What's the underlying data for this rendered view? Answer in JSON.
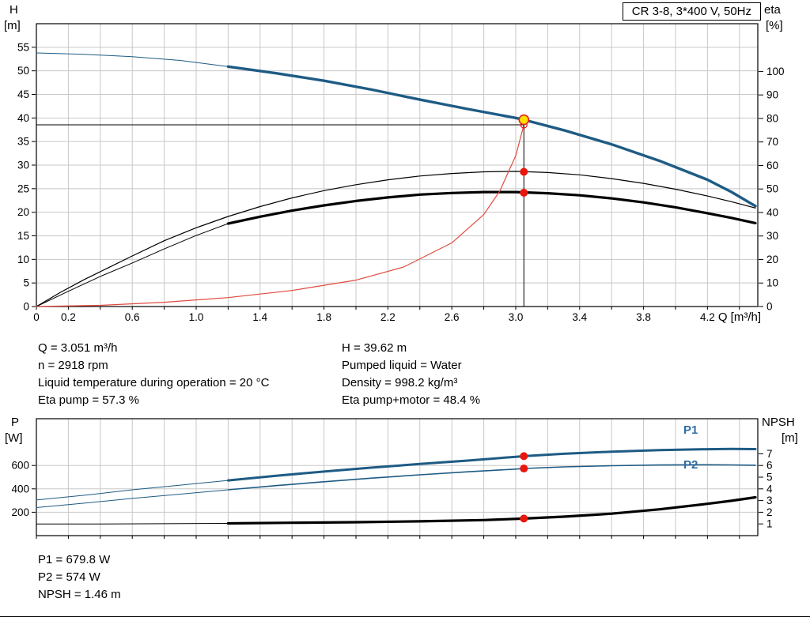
{
  "title_box": "CR 3-8, 3*400 V, 50Hz",
  "colors": {
    "blue": "#1e5b84",
    "black": "#000000",
    "red": "#e04a3f",
    "dot_red": "#e8170d",
    "duty_fill": "#ffdf00",
    "duty_stroke": "#e02020",
    "label_blue": "#2f6da5",
    "grid": "#c8c8c8",
    "axis": "#000000"
  },
  "labels": {
    "h": "H",
    "h_unit": "[m]",
    "eta": "eta",
    "eta_unit": "[%]",
    "q": "Q [m³/h]",
    "p": "P",
    "p_unit": "[W]",
    "npsh": "NPSH",
    "npsh_unit": "[m]",
    "p1": "P1",
    "p2": "P2"
  },
  "info": {
    "q": "Q = 3.051 m³/h",
    "h": "H = 39.62 m",
    "n": "n = 2918 rpm",
    "liquid": "Pumped liquid = Water",
    "temp": "Liquid temperature during operation = 20 °C",
    "density": "Density = 998.2 kg/m³",
    "eta_pump": "Eta pump = 57.3 %",
    "eta_total": "Eta pump+motor = 48.4 %"
  },
  "results": {
    "p1": "P1 = 679.8 W",
    "p2": "P2 = 574 W",
    "npsh": "NPSH = 1.46 m"
  },
  "chart_data": [
    {
      "type": "line",
      "name": "hq-eta-chart",
      "title": "CR 3-8, 3*400 V, 50Hz",
      "x": {
        "label": "Q [m³/h]",
        "min": 0,
        "max": 4.515,
        "grid_step": 0.2,
        "tick_values": [
          0,
          0.2,
          0.6,
          1.0,
          1.4,
          1.8,
          2.2,
          2.6,
          3.0,
          3.4,
          3.8,
          4.2
        ],
        "tick_labels": [
          "0",
          "0.2",
          "0.6",
          "1.0",
          "1.4",
          "1.8",
          "2.2",
          "2.6",
          "3.0",
          "3.4",
          "3.8",
          "4.2"
        ]
      },
      "y_left": {
        "label": "H [m]",
        "min": 0,
        "max": 60,
        "ticks": [
          0,
          5,
          10,
          15,
          20,
          25,
          30,
          35,
          40,
          45,
          50,
          55
        ],
        "grid": [
          5,
          10,
          15,
          20,
          25,
          30,
          35,
          40,
          45,
          50,
          55
        ]
      },
      "y_right": {
        "label": "eta [%]",
        "min": 0,
        "max": 120.3,
        "ticks": [
          0,
          10,
          20,
          30,
          40,
          50,
          60,
          70,
          80,
          90,
          100
        ],
        "grid": []
      },
      "series": [
        {
          "name": "head",
          "axis": "left",
          "color_key": "blue",
          "width": 3.4,
          "thin_until": 1.2,
          "thin_width": 1,
          "points": [
            [
              0,
              53.8
            ],
            [
              0.3,
              53.5
            ],
            [
              0.6,
              53.0
            ],
            [
              0.9,
              52.2
            ],
            [
              1.2,
              50.9
            ],
            [
              1.5,
              49.5
            ],
            [
              1.8,
              47.9
            ],
            [
              2.1,
              46.0
            ],
            [
              2.4,
              43.9
            ],
            [
              2.7,
              41.9
            ],
            [
              3.0,
              40.0
            ],
            [
              3.051,
              39.62
            ],
            [
              3.3,
              37.4
            ],
            [
              3.6,
              34.4
            ],
            [
              3.9,
              30.9
            ],
            [
              4.2,
              26.9
            ],
            [
              4.35,
              24.3
            ],
            [
              4.5,
              21.3
            ]
          ]
        },
        {
          "name": "eta-pump",
          "axis": "right",
          "color_key": "black",
          "width": 1.2,
          "thin_until": 0,
          "thin_width": 1.2,
          "points": [
            [
              0,
              0
            ],
            [
              0.15,
              6
            ],
            [
              0.3,
              11.5
            ],
            [
              0.45,
              16.5
            ],
            [
              0.6,
              21.5
            ],
            [
              0.8,
              28
            ],
            [
              1.0,
              33.5
            ],
            [
              1.2,
              38.3
            ],
            [
              1.4,
              42.5
            ],
            [
              1.6,
              46.2
            ],
            [
              1.8,
              49.3
            ],
            [
              2.0,
              51.8
            ],
            [
              2.2,
              53.9
            ],
            [
              2.4,
              55.5
            ],
            [
              2.6,
              56.6
            ],
            [
              2.8,
              57.3
            ],
            [
              3.0,
              57.5
            ],
            [
              3.2,
              57.0
            ],
            [
              3.4,
              56.0
            ],
            [
              3.6,
              54.4
            ],
            [
              3.8,
              52.4
            ],
            [
              4.0,
              49.9
            ],
            [
              4.2,
              47.0
            ],
            [
              4.35,
              44.6
            ],
            [
              4.5,
              41.9
            ]
          ]
        },
        {
          "name": "eta-pump-motor",
          "axis": "right",
          "color_key": "black",
          "width": 3.2,
          "thin_until": 1.2,
          "thin_width": 1,
          "points": [
            [
              0,
              0
            ],
            [
              0.2,
              6.5
            ],
            [
              0.4,
              12.8
            ],
            [
              0.6,
              18.5
            ],
            [
              0.8,
              24.5
            ],
            [
              1.0,
              30.2
            ],
            [
              1.2,
              35.3
            ],
            [
              1.4,
              38.2
            ],
            [
              1.6,
              40.8
            ],
            [
              1.8,
              43.0
            ],
            [
              2.0,
              44.9
            ],
            [
              2.2,
              46.4
            ],
            [
              2.4,
              47.6
            ],
            [
              2.6,
              48.3
            ],
            [
              2.8,
              48.7
            ],
            [
              3.0,
              48.7
            ],
            [
              3.2,
              48.2
            ],
            [
              3.4,
              47.3
            ],
            [
              3.6,
              46.0
            ],
            [
              3.8,
              44.3
            ],
            [
              4.0,
              42.2
            ],
            [
              4.2,
              39.7
            ],
            [
              4.35,
              37.7
            ],
            [
              4.5,
              35.5
            ]
          ]
        },
        {
          "name": "system-curve",
          "axis": "left",
          "color_key": "red",
          "width": 1.2,
          "thin_until": 0,
          "thin_width": 1.2,
          "points": [
            [
              0,
              0
            ],
            [
              0.4,
              0.25
            ],
            [
              0.8,
              0.9
            ],
            [
              1.2,
              1.9
            ],
            [
              1.6,
              3.4
            ],
            [
              2.0,
              5.6
            ],
            [
              2.3,
              8.4
            ],
            [
              2.6,
              13.5
            ],
            [
              2.8,
              19.5
            ],
            [
              2.9,
              24.5
            ],
            [
              3.0,
              32.0
            ],
            [
              3.051,
              38.55
            ]
          ]
        }
      ],
      "crosshair": {
        "x": 3.051,
        "y_left": 38.55,
        "y_top": 39.62
      },
      "markers": [
        {
          "name": "system-curve-end",
          "x": 3.051,
          "value": 38.55,
          "axis": "left",
          "r": 4,
          "fill": "none",
          "stroke": "#e8170d",
          "stroke_width": 1.2
        },
        {
          "name": "eta-pump-point",
          "x": 3.051,
          "value": 57.3,
          "axis": "right",
          "r": 5,
          "fill": "#e8170d",
          "stroke": "none",
          "stroke_width": 0
        },
        {
          "name": "eta-pump-motor-point",
          "x": 3.051,
          "value": 48.4,
          "axis": "right",
          "r": 5,
          "fill": "#e8170d",
          "stroke": "none",
          "stroke_width": 0
        },
        {
          "name": "duty-point",
          "x": 3.051,
          "value": 39.62,
          "axis": "left",
          "r": 6,
          "fill": "#ffdf00",
          "stroke": "#e02020",
          "stroke_width": 1.6
        }
      ]
    },
    {
      "type": "line",
      "name": "power-npsh-chart",
      "x": {
        "label": "",
        "min": 0,
        "max": 4.515,
        "grid_step": 0.2,
        "tick_values": [],
        "tick_labels": []
      },
      "y_left": {
        "label": "P [W]",
        "min": 0,
        "max": 1000,
        "ticks": [
          200,
          400,
          600
        ],
        "grid": [
          200,
          400,
          600
        ]
      },
      "y_right": {
        "label": "NPSH [m]",
        "min": 0,
        "max": 10,
        "ticks": [
          1,
          2,
          3,
          4,
          5,
          6,
          7
        ],
        "grid": []
      },
      "series": [
        {
          "name": "p1",
          "axis": "left",
          "color_key": "blue",
          "width": 3,
          "thin_until": 1.2,
          "thin_width": 1,
          "points": [
            [
              0,
              305
            ],
            [
              0.3,
              345
            ],
            [
              0.6,
              392
            ],
            [
              0.9,
              432
            ],
            [
              1.2,
              472
            ],
            [
              1.5,
              512
            ],
            [
              1.8,
              548
            ],
            [
              2.1,
              582
            ],
            [
              2.4,
              613
            ],
            [
              2.7,
              642
            ],
            [
              3.0,
              674
            ],
            [
              3.051,
              679.8
            ],
            [
              3.3,
              700
            ],
            [
              3.6,
              718
            ],
            [
              3.9,
              731
            ],
            [
              4.2,
              739
            ],
            [
              4.35,
              741
            ],
            [
              4.5,
              740
            ]
          ]
        },
        {
          "name": "p2",
          "axis": "left",
          "color_key": "blue",
          "width": 1.6,
          "thin_until": 1.2,
          "thin_width": 1,
          "points": [
            [
              0,
              240
            ],
            [
              0.3,
              278
            ],
            [
              0.6,
              318
            ],
            [
              0.9,
              355
            ],
            [
              1.2,
              392
            ],
            [
              1.5,
              428
            ],
            [
              1.8,
              461
            ],
            [
              2.1,
              492
            ],
            [
              2.4,
              520
            ],
            [
              2.7,
              546
            ],
            [
              3.0,
              569
            ],
            [
              3.051,
              574
            ],
            [
              3.3,
              588
            ],
            [
              3.6,
              598
            ],
            [
              3.9,
              604
            ],
            [
              4.2,
              606
            ],
            [
              4.35,
              605
            ],
            [
              4.5,
              602
            ]
          ]
        },
        {
          "name": "npsh",
          "axis": "right",
          "color_key": "black",
          "width": 3.2,
          "thin_until": 1.2,
          "thin_width": 1,
          "points": [
            [
              0,
              1.0
            ],
            [
              0.4,
              1.0
            ],
            [
              0.8,
              1.02
            ],
            [
              1.2,
              1.05
            ],
            [
              1.6,
              1.1
            ],
            [
              2.0,
              1.15
            ],
            [
              2.4,
              1.22
            ],
            [
              2.8,
              1.33
            ],
            [
              3.051,
              1.46
            ],
            [
              3.3,
              1.62
            ],
            [
              3.6,
              1.88
            ],
            [
              3.9,
              2.25
            ],
            [
              4.2,
              2.72
            ],
            [
              4.35,
              2.98
            ],
            [
              4.5,
              3.28
            ]
          ]
        }
      ],
      "markers": [
        {
          "name": "p1-point",
          "x": 3.051,
          "value": 679.8,
          "axis": "left",
          "r": 5,
          "fill": "#e8170d",
          "stroke": "none",
          "stroke_width": 0
        },
        {
          "name": "p2-point",
          "x": 3.051,
          "value": 574,
          "axis": "left",
          "r": 5,
          "fill": "#e8170d",
          "stroke": "none",
          "stroke_width": 0
        },
        {
          "name": "npsh-point",
          "x": 3.051,
          "value": 1.46,
          "axis": "right",
          "r": 5,
          "fill": "#e8170d",
          "stroke": "none",
          "stroke_width": 0
        }
      ]
    }
  ]
}
